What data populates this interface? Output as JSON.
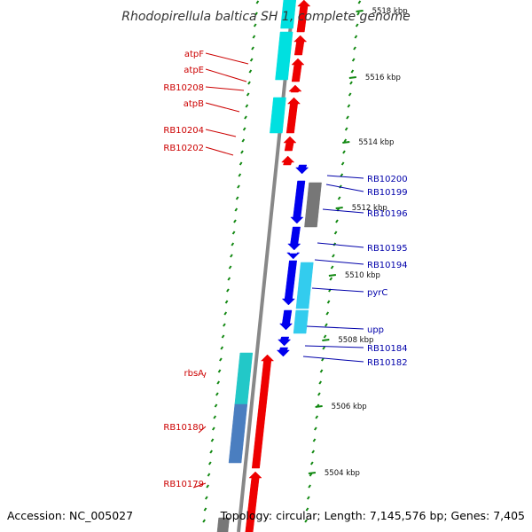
{
  "title": "Rhodopirellula baltica SH 1, complete genome",
  "footer": {
    "accession": "Accession: NC_005027",
    "topology": "Topology: circular; Length: 7,145,576 bp; Genes: 7,405"
  },
  "colors": {
    "forward_gene": "#ee0000",
    "reverse_gene": "#0000ee",
    "forward_cds": "#00e0e0",
    "reverse_cds": "#33ccee",
    "backbone": "#888888",
    "tick": "#118811",
    "label_forward": "#cc0000",
    "label_reverse": "#0000aa"
  },
  "kbp_labels": [
    "5518 kbp",
    "5516 kbp",
    "5514 kbp",
    "5512 kbp",
    "5510 kbp",
    "5508 kbp",
    "5506 kbp",
    "5504 kbp"
  ],
  "left_labels": [
    "atpF",
    "atpE",
    "RB10208",
    "atpB",
    "RB10204",
    "RB10202",
    "rbsA",
    "RB10180",
    "RB10179"
  ],
  "right_labels": [
    "RB10200",
    "RB10199",
    "RB10196",
    "RB10195",
    "RB10194",
    "pyrC",
    "upp",
    "RB10184",
    "RB10182"
  ]
}
